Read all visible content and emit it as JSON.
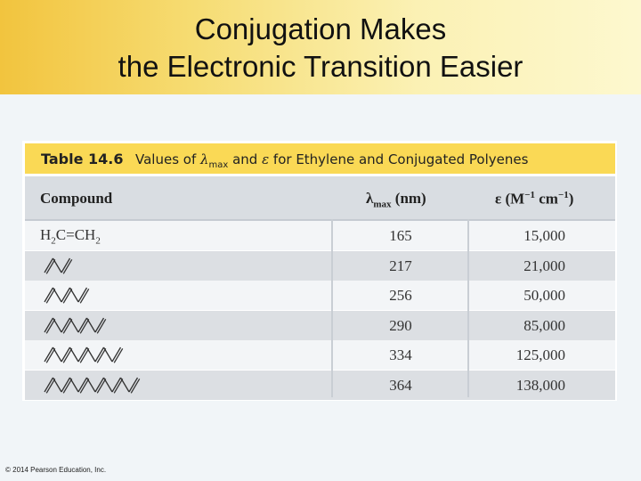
{
  "slide": {
    "title_line1": "Conjugation Makes",
    "title_line2": "the Electronic Transition Easier"
  },
  "table": {
    "caption_number": "Table 14.6",
    "caption_pre": "Values of ",
    "caption_mid": " and ",
    "caption_post": " for Ethylene and Conjugated Polyenes",
    "lambda_symbol": "λ",
    "lambda_sub": "max",
    "epsilon_symbol": "ε",
    "headers": {
      "compound": "Compound",
      "lambda_main": "λ",
      "lambda_sub": "max",
      "lambda_unit": " (nm)",
      "eps_main": "ε (M",
      "eps_sup1": "−1",
      "eps_mid": " cm",
      "eps_sup2": "−1",
      "eps_end": ")"
    },
    "first_formula": {
      "h1": "H",
      "s1": "2",
      "mid": "C=CH",
      "s2": "2"
    },
    "rows": [
      {
        "compound": "ethylene",
        "lambda": "165",
        "epsilon": "15,000"
      },
      {
        "compound": "butadiene",
        "lambda": "217",
        "epsilon": "21,000"
      },
      {
        "compound": "hexatriene",
        "lambda": "256",
        "epsilon": "50,000"
      },
      {
        "compound": "octatetraene",
        "lambda": "290",
        "epsilon": "85,000"
      },
      {
        "compound": "decapentaene",
        "lambda": "334",
        "epsilon": "125,000"
      },
      {
        "compound": "dodecahexaene",
        "lambda": "364",
        "epsilon": "138,000"
      }
    ]
  },
  "footer": {
    "copyright": "© 2014 Pearson Education, Inc."
  }
}
